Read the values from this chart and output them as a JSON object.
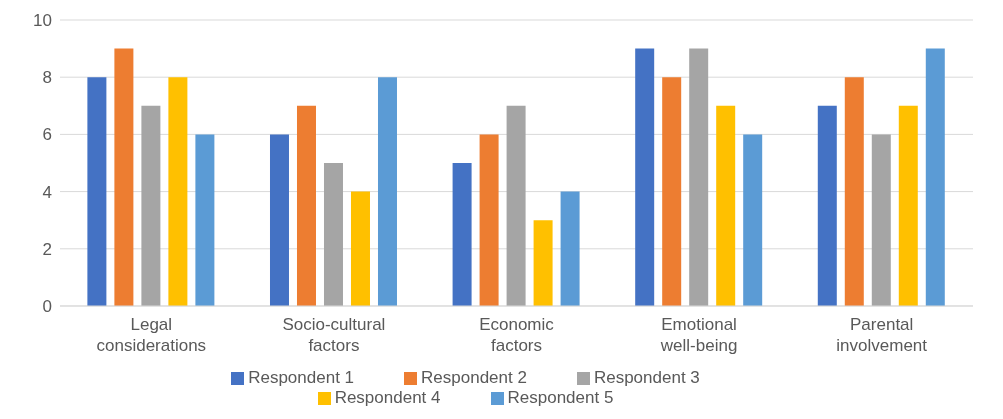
{
  "chart_data": {
    "type": "bar",
    "categories": [
      "Legal considerations",
      "Socio-cultural factors",
      "Economic factors",
      "Emotional well-being",
      "Parental involvement"
    ],
    "series": [
      {
        "name": "Respondent 1",
        "color": "#4472c4",
        "values": [
          8,
          6,
          5,
          9,
          7
        ]
      },
      {
        "name": "Respondent 2",
        "color": "#ed7d31",
        "values": [
          9,
          7,
          6,
          8,
          8
        ]
      },
      {
        "name": "Respondent 3",
        "color": "#a5a5a5",
        "values": [
          7,
          5,
          7,
          9,
          6
        ]
      },
      {
        "name": "Respondent 4",
        "color": "#ffc000",
        "values": [
          8,
          4,
          3,
          7,
          7
        ]
      },
      {
        "name": "Respondent 5",
        "color": "#5b9bd5",
        "values": [
          6,
          8,
          4,
          6,
          9
        ]
      }
    ],
    "ylim": [
      0,
      10
    ],
    "yticks": [
      0,
      2,
      4,
      6,
      8,
      10
    ],
    "grid": "y",
    "legend": "bottom"
  }
}
